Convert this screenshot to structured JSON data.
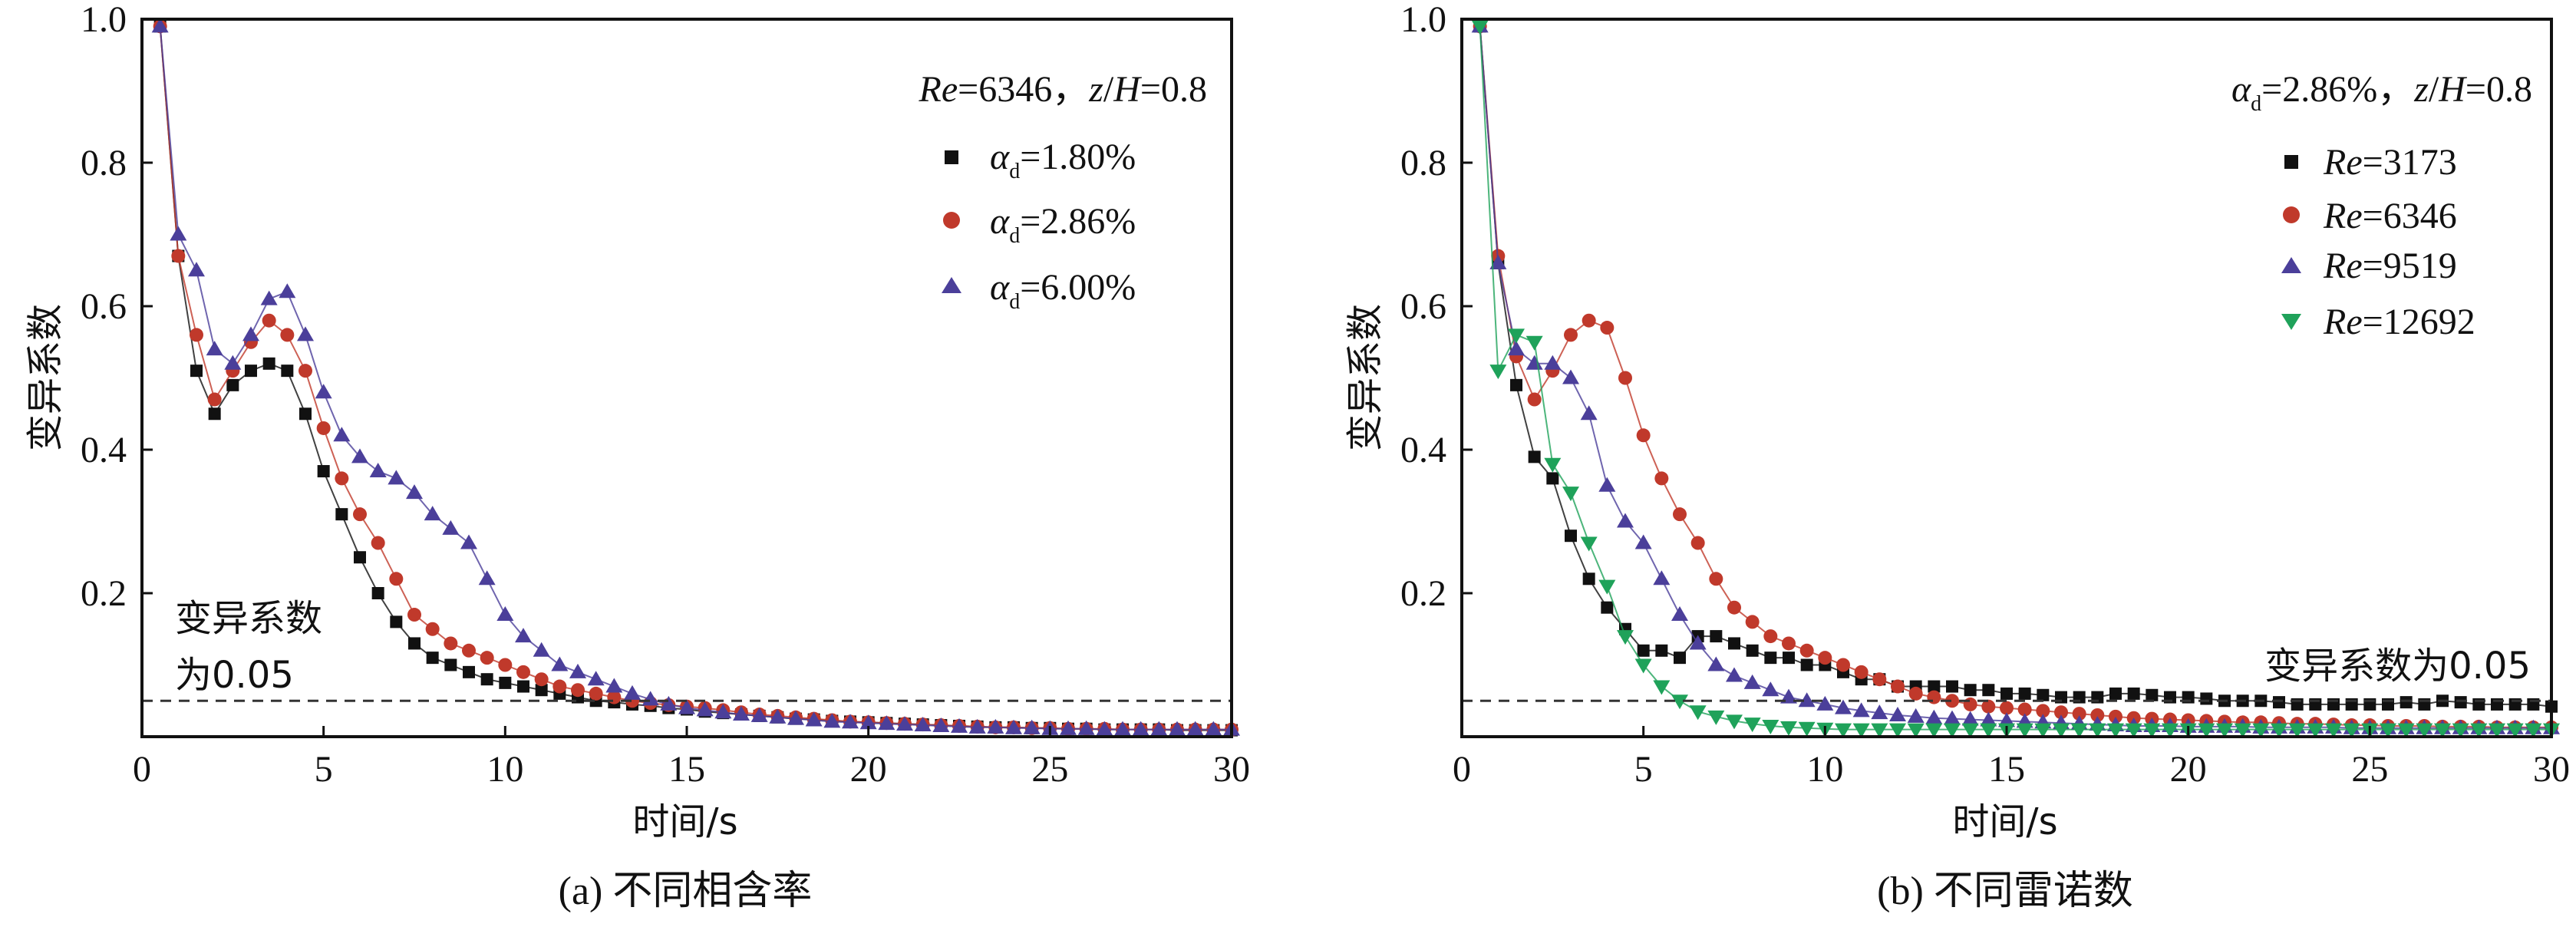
{
  "chart_data": [
    {
      "type": "line",
      "panel": "a",
      "caption": "(a) 不同相含率",
      "xlabel": "时间/s",
      "ylabel": "变异系数",
      "xlim": [
        0,
        30
      ],
      "ylim": [
        0,
        1.0
      ],
      "xticks": [
        "0",
        "5",
        "10",
        "15",
        "20",
        "25",
        "30"
      ],
      "yticks": [
        "0.2",
        "0.4",
        "0.6",
        "0.8",
        "1.0"
      ],
      "condition": {
        "re": "Re",
        "re_val": "=6346，",
        "z": "z",
        "slash": "/",
        "h": "H",
        "z_val": "=0.8"
      },
      "threshold": {
        "value": 0.05,
        "label_line1": "变异系数",
        "label_line2": "为0.05"
      },
      "series": [
        {
          "name": "αd=1.80%",
          "sym": "α",
          "sub": "d",
          "val": "=1.80%",
          "color": "#111111",
          "marker": "square",
          "x": [
            0.5,
            1,
            1.5,
            2,
            2.5,
            3,
            3.5,
            4,
            4.5,
            5,
            5.5,
            6,
            6.5,
            7,
            7.5,
            8,
            8.5,
            9,
            9.5,
            10,
            10.5,
            11,
            11.5,
            12,
            12.5,
            13,
            13.5,
            14,
            14.5,
            15,
            15.5,
            16,
            16.5,
            17,
            17.5,
            18,
            18.5,
            19,
            19.5,
            20,
            20.5,
            21,
            21.5,
            22,
            22.5,
            23,
            23.5,
            24,
            24.5,
            25,
            25.5,
            26,
            26.5,
            27,
            27.5,
            28,
            28.5,
            29,
            29.5,
            30
          ],
          "y": [
            0.99,
            0.67,
            0.51,
            0.45,
            0.49,
            0.51,
            0.52,
            0.51,
            0.45,
            0.37,
            0.31,
            0.25,
            0.2,
            0.16,
            0.13,
            0.11,
            0.1,
            0.09,
            0.08,
            0.075,
            0.07,
            0.065,
            0.06,
            0.055,
            0.05,
            0.048,
            0.045,
            0.043,
            0.04,
            0.038,
            0.035,
            0.033,
            0.031,
            0.029,
            0.027,
            0.025,
            0.024,
            0.022,
            0.021,
            0.02,
            0.019,
            0.018,
            0.017,
            0.016,
            0.015,
            0.014,
            0.013,
            0.013,
            0.012,
            0.012,
            0.011,
            0.011,
            0.01,
            0.01,
            0.01,
            0.01,
            0.009,
            0.009,
            0.009,
            0.009
          ]
        },
        {
          "name": "αd=2.86%",
          "sym": "α",
          "sub": "d",
          "val": "=2.86%",
          "color": "#c0392b",
          "marker": "circle",
          "x": [
            0.5,
            1,
            1.5,
            2,
            2.5,
            3,
            3.5,
            4,
            4.5,
            5,
            5.5,
            6,
            6.5,
            7,
            7.5,
            8,
            8.5,
            9,
            9.5,
            10,
            10.5,
            11,
            11.5,
            12,
            12.5,
            13,
            13.5,
            14,
            14.5,
            15,
            15.5,
            16,
            16.5,
            17,
            17.5,
            18,
            18.5,
            19,
            19.5,
            20,
            20.5,
            21,
            21.5,
            22,
            22.5,
            23,
            23.5,
            24,
            24.5,
            25,
            25.5,
            26,
            26.5,
            27,
            27.5,
            28,
            28.5,
            29,
            29.5,
            30
          ],
          "y": [
            0.99,
            0.67,
            0.56,
            0.47,
            0.51,
            0.55,
            0.58,
            0.56,
            0.51,
            0.43,
            0.36,
            0.31,
            0.27,
            0.22,
            0.17,
            0.15,
            0.13,
            0.12,
            0.11,
            0.1,
            0.09,
            0.08,
            0.07,
            0.065,
            0.06,
            0.055,
            0.05,
            0.047,
            0.044,
            0.042,
            0.04,
            0.037,
            0.034,
            0.031,
            0.029,
            0.027,
            0.025,
            0.023,
            0.021,
            0.02,
            0.019,
            0.018,
            0.017,
            0.016,
            0.015,
            0.014,
            0.013,
            0.013,
            0.012,
            0.012,
            0.011,
            0.011,
            0.011,
            0.01,
            0.01,
            0.01,
            0.01,
            0.01,
            0.01,
            0.01
          ]
        },
        {
          "name": "αd=6.00%",
          "sym": "α",
          "sub": "d",
          "val": "=6.00%",
          "color": "#4b3f9a",
          "marker": "triangle-up",
          "x": [
            0.5,
            1,
            1.5,
            2,
            2.5,
            3,
            3.5,
            4,
            4.5,
            5,
            5.5,
            6,
            6.5,
            7,
            7.5,
            8,
            8.5,
            9,
            9.5,
            10,
            10.5,
            11,
            11.5,
            12,
            12.5,
            13,
            13.5,
            14,
            14.5,
            15,
            15.5,
            16,
            16.5,
            17,
            17.5,
            18,
            18.5,
            19,
            19.5,
            20,
            20.5,
            21,
            21.5,
            22,
            22.5,
            23,
            23.5,
            24,
            24.5,
            25,
            25.5,
            26,
            26.5,
            27,
            27.5,
            28,
            28.5,
            29,
            29.5,
            30
          ],
          "y": [
            0.99,
            0.7,
            0.65,
            0.54,
            0.52,
            0.56,
            0.61,
            0.62,
            0.56,
            0.48,
            0.42,
            0.39,
            0.37,
            0.36,
            0.34,
            0.31,
            0.29,
            0.27,
            0.22,
            0.17,
            0.14,
            0.12,
            0.1,
            0.09,
            0.08,
            0.07,
            0.06,
            0.052,
            0.045,
            0.04,
            0.037,
            0.034,
            0.031,
            0.029,
            0.027,
            0.025,
            0.023,
            0.021,
            0.02,
            0.019,
            0.018,
            0.017,
            0.016,
            0.015,
            0.014,
            0.013,
            0.013,
            0.012,
            0.012,
            0.011,
            0.011,
            0.011,
            0.01,
            0.01,
            0.01,
            0.01,
            0.01,
            0.01,
            0.01,
            0.01
          ]
        }
      ]
    },
    {
      "type": "line",
      "panel": "b",
      "caption": "(b) 不同雷诺数",
      "xlabel": "时间/s",
      "ylabel": "变异系数",
      "xlim": [
        0,
        30
      ],
      "ylim": [
        0,
        1.0
      ],
      "xticks": [
        "0",
        "5",
        "10",
        "15",
        "20",
        "25",
        "30"
      ],
      "yticks": [
        "0.2",
        "0.4",
        "0.6",
        "0.8",
        "1.0"
      ],
      "condition": {
        "alpha": "α",
        "alpha_sub": "d",
        "alpha_val": "=2.86%，",
        "z": "z",
        "slash": "/",
        "h": "H",
        "z_val": "=0.8"
      },
      "threshold": {
        "value": 0.05,
        "label": "变异系数为0.05"
      },
      "series": [
        {
          "name": "Re=3173",
          "sym": "Re",
          "val": "=3173",
          "color": "#111111",
          "marker": "square",
          "x": [
            0.5,
            1,
            1.5,
            2,
            2.5,
            3,
            3.5,
            4,
            4.5,
            5,
            5.5,
            6,
            6.5,
            7,
            7.5,
            8,
            8.5,
            9,
            9.5,
            10,
            10.5,
            11,
            11.5,
            12,
            12.5,
            13,
            13.5,
            14,
            14.5,
            15,
            15.5,
            16,
            16.5,
            17,
            17.5,
            18,
            18.5,
            19,
            19.5,
            20,
            20.5,
            21,
            21.5,
            22,
            22.5,
            23,
            23.5,
            24,
            24.5,
            25,
            25.5,
            26,
            26.5,
            27,
            27.5,
            28,
            28.5,
            29,
            29.5,
            30
          ],
          "y": [
            0.99,
            0.66,
            0.49,
            0.39,
            0.36,
            0.28,
            0.22,
            0.18,
            0.15,
            0.12,
            0.12,
            0.11,
            0.14,
            0.14,
            0.13,
            0.12,
            0.11,
            0.11,
            0.1,
            0.1,
            0.09,
            0.08,
            0.08,
            0.07,
            0.07,
            0.07,
            0.07,
            0.065,
            0.065,
            0.06,
            0.06,
            0.058,
            0.055,
            0.055,
            0.055,
            0.06,
            0.06,
            0.058,
            0.055,
            0.055,
            0.053,
            0.05,
            0.05,
            0.05,
            0.048,
            0.045,
            0.045,
            0.045,
            0.045,
            0.045,
            0.045,
            0.048,
            0.045,
            0.05,
            0.048,
            0.045,
            0.045,
            0.045,
            0.045,
            0.042
          ]
        },
        {
          "name": "Re=6346",
          "sym": "Re",
          "val": "=6346",
          "color": "#c0392b",
          "marker": "circle",
          "x": [
            0.5,
            1,
            1.5,
            2,
            2.5,
            3,
            3.5,
            4,
            4.5,
            5,
            5.5,
            6,
            6.5,
            7,
            7.5,
            8,
            8.5,
            9,
            9.5,
            10,
            10.5,
            11,
            11.5,
            12,
            12.5,
            13,
            13.5,
            14,
            14.5,
            15,
            15.5,
            16,
            16.5,
            17,
            17.5,
            18,
            18.5,
            19,
            19.5,
            20,
            20.5,
            21,
            21.5,
            22,
            22.5,
            23,
            23.5,
            24,
            24.5,
            25,
            25.5,
            26,
            26.5,
            27,
            27.5,
            28,
            28.5,
            29,
            29.5,
            30
          ],
          "y": [
            0.99,
            0.67,
            0.53,
            0.47,
            0.51,
            0.56,
            0.58,
            0.57,
            0.5,
            0.42,
            0.36,
            0.31,
            0.27,
            0.22,
            0.18,
            0.16,
            0.14,
            0.13,
            0.12,
            0.11,
            0.1,
            0.09,
            0.08,
            0.07,
            0.06,
            0.055,
            0.05,
            0.045,
            0.042,
            0.04,
            0.038,
            0.036,
            0.034,
            0.032,
            0.03,
            0.028,
            0.026,
            0.025,
            0.024,
            0.023,
            0.022,
            0.021,
            0.02,
            0.02,
            0.019,
            0.018,
            0.018,
            0.017,
            0.016,
            0.016,
            0.015,
            0.015,
            0.015,
            0.014,
            0.014,
            0.014,
            0.013,
            0.013,
            0.013,
            0.013
          ]
        },
        {
          "name": "Re=9519",
          "sym": "Re",
          "val": "=9519",
          "color": "#4b3f9a",
          "marker": "triangle-up",
          "x": [
            0.5,
            1,
            1.5,
            2,
            2.5,
            3,
            3.5,
            4,
            4.5,
            5,
            5.5,
            6,
            6.5,
            7,
            7.5,
            8,
            8.5,
            9,
            9.5,
            10,
            10.5,
            11,
            11.5,
            12,
            12.5,
            13,
            13.5,
            14,
            14.5,
            15,
            15.5,
            16,
            16.5,
            17,
            17.5,
            18,
            18.5,
            19,
            19.5,
            20,
            20.5,
            21,
            21.5,
            22,
            22.5,
            23,
            23.5,
            24,
            24.5,
            25,
            25.5,
            26,
            26.5,
            27,
            27.5,
            28,
            28.5,
            29,
            29.5,
            30
          ],
          "y": [
            0.99,
            0.66,
            0.54,
            0.52,
            0.52,
            0.5,
            0.45,
            0.35,
            0.3,
            0.27,
            0.22,
            0.17,
            0.13,
            0.1,
            0.085,
            0.075,
            0.065,
            0.055,
            0.05,
            0.045,
            0.04,
            0.036,
            0.033,
            0.03,
            0.028,
            0.026,
            0.025,
            0.024,
            0.023,
            0.022,
            0.021,
            0.02,
            0.019,
            0.018,
            0.017,
            0.016,
            0.015,
            0.015,
            0.015,
            0.014,
            0.014,
            0.014,
            0.014,
            0.013,
            0.013,
            0.013,
            0.013,
            0.013,
            0.012,
            0.012,
            0.012,
            0.012,
            0.012,
            0.012,
            0.012,
            0.012,
            0.012,
            0.012,
            0.012,
            0.012
          ]
        },
        {
          "name": "Re=12692",
          "sym": "Re",
          "val": "=12692",
          "color": "#1fa25a",
          "marker": "triangle-down",
          "x": [
            0.5,
            1,
            1.5,
            2,
            2.5,
            3,
            3.5,
            4,
            4.5,
            5,
            5.5,
            6,
            6.5,
            7,
            7.5,
            8,
            8.5,
            9,
            9.5,
            10,
            10.5,
            11,
            11.5,
            12,
            12.5,
            13,
            13.5,
            14,
            14.5,
            15,
            15.5,
            16,
            16.5,
            17,
            17.5,
            18,
            18.5,
            19,
            19.5,
            20,
            20.5,
            21,
            21.5,
            22,
            22.5,
            23,
            23.5,
            24,
            24.5,
            25,
            25.5,
            26,
            26.5,
            27,
            27.5,
            28,
            28.5,
            29,
            29.5,
            30
          ],
          "y": [
            0.99,
            0.51,
            0.56,
            0.55,
            0.38,
            0.34,
            0.27,
            0.21,
            0.14,
            0.1,
            0.07,
            0.05,
            0.035,
            0.028,
            0.022,
            0.018,
            0.015,
            0.013,
            0.012,
            0.011,
            0.01,
            0.01,
            0.01,
            0.01,
            0.01,
            0.01,
            0.01,
            0.01,
            0.01,
            0.01,
            0.01,
            0.01,
            0.01,
            0.01,
            0.01,
            0.01,
            0.01,
            0.01,
            0.01,
            0.01,
            0.01,
            0.01,
            0.01,
            0.01,
            0.01,
            0.01,
            0.01,
            0.01,
            0.01,
            0.01,
            0.01,
            0.01,
            0.01,
            0.01,
            0.01,
            0.01,
            0.01,
            0.01,
            0.01,
            0.01
          ]
        }
      ]
    }
  ]
}
